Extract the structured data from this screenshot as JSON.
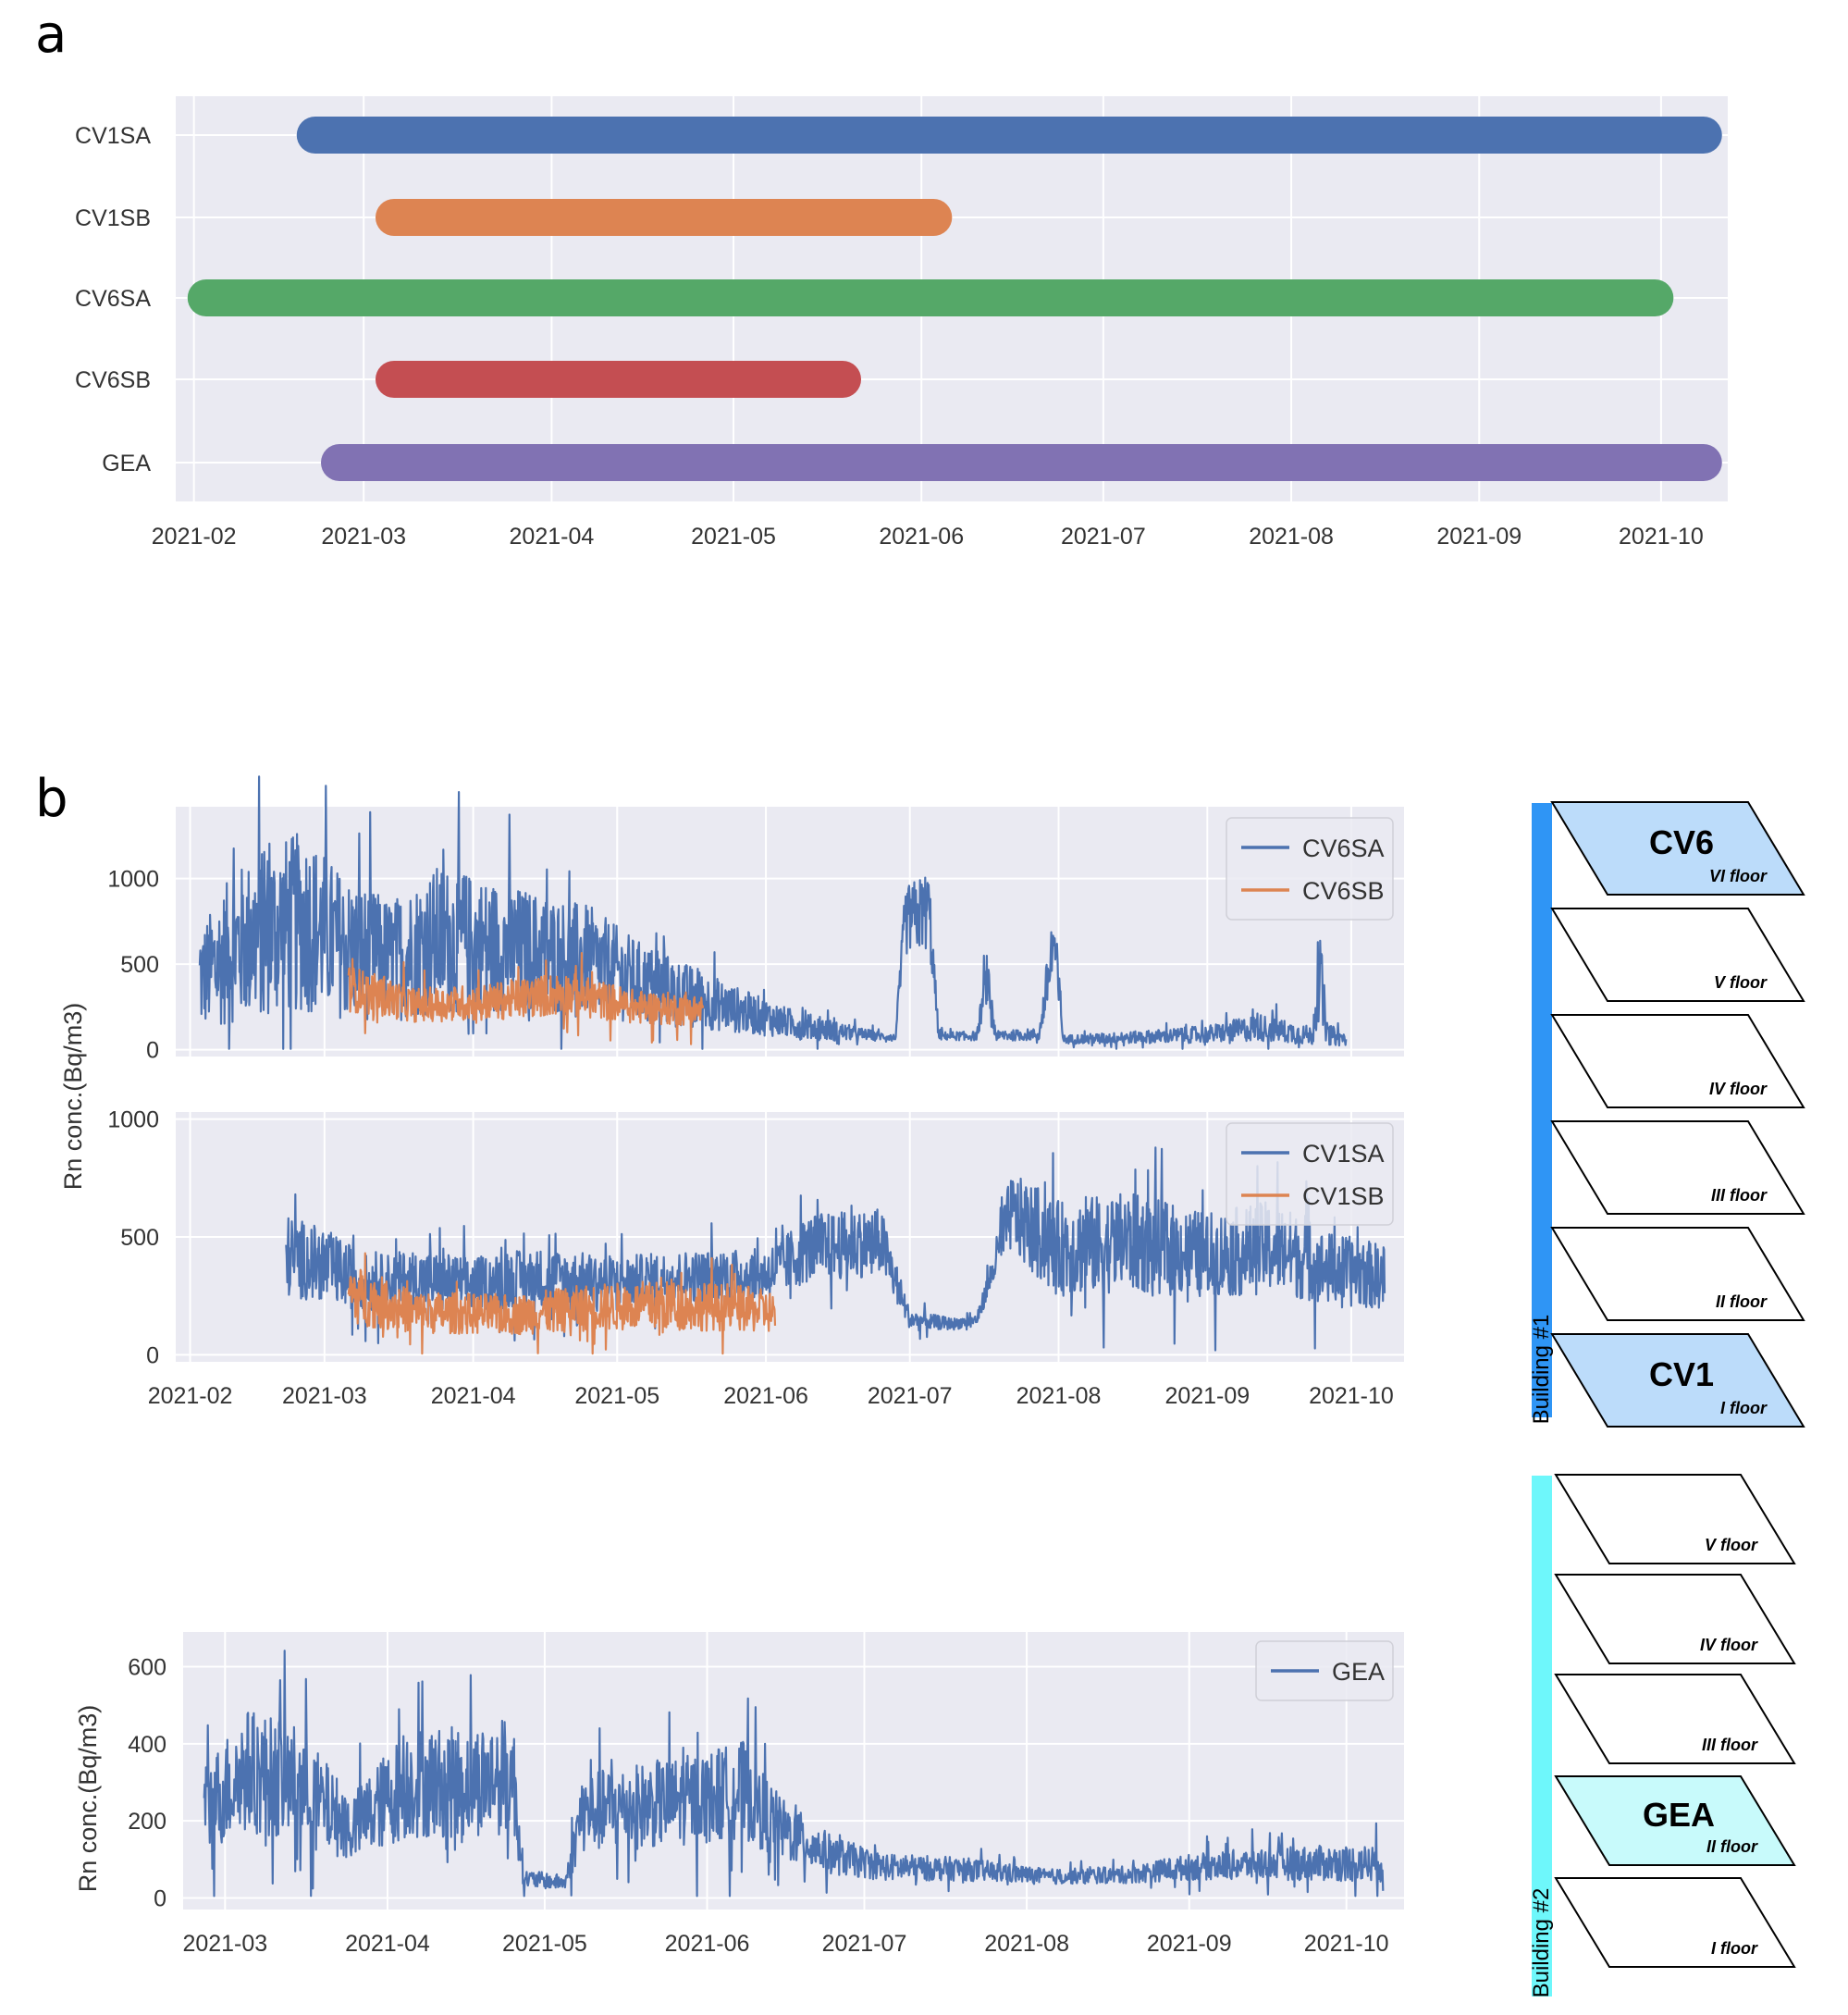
{
  "panels": {
    "a": "a",
    "b": "b"
  },
  "colors": {
    "blue": "#4c72b0",
    "orange": "#dd8452",
    "green": "#55a868",
    "red": "#c44e52",
    "purple": "#8172b3",
    "plot_bg": "#eaeaf2",
    "bldg1": "#2f95f5",
    "bldg2": "#6ef7fb",
    "floor_hl1": "#bcdcfa",
    "floor_hl2": "#c8fafb"
  },
  "chart_data": [
    {
      "id": "a",
      "type": "gantt",
      "title": "",
      "xlabel": "",
      "ylabel": "",
      "x_ticks": [
        "2021-02",
        "2021-03",
        "2021-04",
        "2021-05",
        "2021-06",
        "2021-07",
        "2021-08",
        "2021-09",
        "2021-10"
      ],
      "xlim": [
        "2021-01-29",
        "2021-10-12"
      ],
      "grid": true,
      "rows": [
        {
          "label": "CV1SA",
          "start": "2021-02-21",
          "end": "2021-10-08",
          "color": "#4c72b0"
        },
        {
          "label": "CV1SB",
          "start": "2021-03-06",
          "end": "2021-06-03",
          "color": "#dd8452"
        },
        {
          "label": "CV6SA",
          "start": "2021-02-03",
          "end": "2021-09-30",
          "color": "#55a868"
        },
        {
          "label": "CV6SB",
          "start": "2021-03-06",
          "end": "2021-05-19",
          "color": "#c44e52"
        },
        {
          "label": "GEA",
          "start": "2021-02-25",
          "end": "2021-10-08",
          "color": "#8172b3"
        }
      ]
    },
    {
      "id": "b1",
      "type": "line",
      "xlabel": "",
      "ylabel": "",
      "x_ticks": [],
      "y_ticks": [
        "0",
        "500",
        "1000"
      ],
      "xlim": [
        "2021-01-29",
        "2021-10-12"
      ],
      "ylim": [
        -40,
        1420
      ],
      "legend_position": "top-right",
      "series": [
        {
          "name": "CV6SA",
          "color": "#4c72b0",
          "start": "2021-02-03",
          "end": "2021-09-30",
          "keypoints": [
            [
              "2021-02-03",
              400
            ],
            [
              "2021-02-10",
              600
            ],
            [
              "2021-02-18",
              700
            ],
            [
              "2021-02-25",
              750
            ],
            [
              "2021-03-05",
              600
            ],
            [
              "2021-03-15",
              520
            ],
            [
              "2021-03-25",
              650
            ],
            [
              "2021-04-05",
              600
            ],
            [
              "2021-04-15",
              560
            ],
            [
              "2021-04-25",
              520
            ],
            [
              "2021-05-05",
              400
            ],
            [
              "2021-05-15",
              320
            ],
            [
              "2021-05-25",
              240
            ],
            [
              "2021-06-05",
              160
            ],
            [
              "2021-06-15",
              110
            ],
            [
              "2021-06-28",
              70
            ],
            [
              "2021-06-30",
              750
            ],
            [
              "2021-07-05",
              820
            ],
            [
              "2021-07-07",
              80
            ],
            [
              "2021-07-15",
              80
            ],
            [
              "2021-07-17",
              420
            ],
            [
              "2021-07-19",
              80
            ],
            [
              "2021-07-28",
              90
            ],
            [
              "2021-07-31",
              640
            ],
            [
              "2021-08-02",
              60
            ],
            [
              "2021-08-15",
              70
            ],
            [
              "2021-09-01",
              90
            ],
            [
              "2021-09-12",
              130
            ],
            [
              "2021-09-23",
              80
            ],
            [
              "2021-09-24",
              520
            ],
            [
              "2021-09-26",
              90
            ],
            [
              "2021-09-30",
              60
            ]
          ],
          "amplitude": [
            [
              0,
              0.75
            ],
            [
              0.55,
              0.55
            ],
            [
              0.6,
              0.25
            ],
            [
              1,
              0.7
            ]
          ]
        },
        {
          "name": "CV6SB",
          "color": "#dd8452",
          "start": "2021-03-06",
          "end": "2021-05-19",
          "keypoints": [
            [
              "2021-03-06",
              360
            ],
            [
              "2021-03-20",
              260
            ],
            [
              "2021-04-05",
              280
            ],
            [
              "2021-04-20",
              330
            ],
            [
              "2021-05-05",
              250
            ],
            [
              "2021-05-19",
              230
            ]
          ],
          "amplitude": [
            [
              0,
              0.38
            ],
            [
              1,
              0.4
            ]
          ]
        }
      ]
    },
    {
      "id": "b2",
      "type": "line",
      "xlabel": "",
      "ylabel": "Rn conc.(Bq/m3)",
      "x_ticks": [
        "2021-02",
        "2021-03",
        "2021-04",
        "2021-05",
        "2021-06",
        "2021-07",
        "2021-08",
        "2021-09",
        "2021-10"
      ],
      "y_ticks": [
        "0",
        "500",
        "1000"
      ],
      "xlim": [
        "2021-01-29",
        "2021-10-12"
      ],
      "ylim": [
        -30,
        1030
      ],
      "legend_position": "top-right",
      "series": [
        {
          "name": "CV1SA",
          "color": "#4c72b0",
          "start": "2021-02-21",
          "end": "2021-10-08",
          "keypoints": [
            [
              "2021-02-21",
              420
            ],
            [
              "2021-03-01",
              380
            ],
            [
              "2021-03-10",
              300
            ],
            [
              "2021-03-20",
              320
            ],
            [
              "2021-04-01",
              300
            ],
            [
              "2021-04-15",
              330
            ],
            [
              "2021-05-01",
              310
            ],
            [
              "2021-05-15",
              330
            ],
            [
              "2021-06-01",
              340
            ],
            [
              "2021-06-10",
              450
            ],
            [
              "2021-06-25",
              480
            ],
            [
              "2021-07-01",
              150
            ],
            [
              "2021-07-10",
              130
            ],
            [
              "2021-07-15",
              150
            ],
            [
              "2021-07-22",
              600
            ],
            [
              "2021-08-01",
              450
            ],
            [
              "2021-08-15",
              480
            ],
            [
              "2021-09-01",
              420
            ],
            [
              "2021-09-15",
              460
            ],
            [
              "2021-09-25",
              370
            ],
            [
              "2021-10-08",
              330
            ]
          ],
          "amplitude": [
            [
              0,
              0.42
            ],
            [
              0.55,
              0.3
            ],
            [
              0.63,
              0.15
            ],
            [
              0.7,
              0.45
            ],
            [
              1,
              0.42
            ]
          ]
        },
        {
          "name": "CV1SB",
          "color": "#dd8452",
          "start": "2021-03-06",
          "end": "2021-06-03",
          "keypoints": [
            [
              "2021-03-06",
              260
            ],
            [
              "2021-03-20",
              180
            ],
            [
              "2021-04-10",
              170
            ],
            [
              "2021-04-25",
              200
            ],
            [
              "2021-05-10",
              210
            ],
            [
              "2021-05-25",
              200
            ],
            [
              "2021-06-03",
              180
            ]
          ],
          "amplitude": [
            [
              0,
              0.5
            ],
            [
              1,
              0.5
            ]
          ]
        }
      ]
    },
    {
      "id": "b3",
      "type": "line",
      "xlabel": "",
      "ylabel": "Rn conc.(Bq/m3)",
      "x_ticks": [
        "2021-03",
        "2021-04",
        "2021-05",
        "2021-06",
        "2021-07",
        "2021-08",
        "2021-09",
        "2021-10"
      ],
      "y_ticks": [
        "0",
        "200",
        "400",
        "600"
      ],
      "xlim": [
        "2021-02-21",
        "2021-10-12"
      ],
      "ylim": [
        -30,
        690
      ],
      "legend_position": "top-right",
      "series": [
        {
          "name": "GEA",
          "color": "#4c72b0",
          "start": "2021-02-25",
          "end": "2021-10-08",
          "keypoints": [
            [
              "2021-02-25",
              230
            ],
            [
              "2021-03-05",
              330
            ],
            [
              "2021-03-15",
              300
            ],
            [
              "2021-03-25",
              180
            ],
            [
              "2021-04-05",
              300
            ],
            [
              "2021-04-15",
              300
            ],
            [
              "2021-04-25",
              320
            ],
            [
              "2021-04-27",
              50
            ],
            [
              "2021-05-05",
              40
            ],
            [
              "2021-05-08",
              220
            ],
            [
              "2021-05-20",
              240
            ],
            [
              "2021-06-01",
              260
            ],
            [
              "2021-06-08",
              280
            ],
            [
              "2021-06-15",
              180
            ],
            [
              "2021-06-25",
              110
            ],
            [
              "2021-07-05",
              80
            ],
            [
              "2021-07-20",
              75
            ],
            [
              "2021-08-05",
              55
            ],
            [
              "2021-08-20",
              60
            ],
            [
              "2021-09-01",
              80
            ],
            [
              "2021-09-15",
              90
            ],
            [
              "2021-10-08",
              90
            ]
          ],
          "amplitude": [
            [
              0,
              0.5
            ],
            [
              0.55,
              0.45
            ],
            [
              0.75,
              0.35
            ],
            [
              1,
              0.55
            ]
          ]
        }
      ]
    }
  ],
  "buildings": [
    {
      "name": "Building #1",
      "floors": [
        {
          "label": "VI floor",
          "sensor": "CV6",
          "highlight": true
        },
        {
          "label": "V floor",
          "sensor": "",
          "highlight": false
        },
        {
          "label": "IV floor",
          "sensor": "",
          "highlight": false
        },
        {
          "label": "III floor",
          "sensor": "",
          "highlight": false
        },
        {
          "label": "II floor",
          "sensor": "",
          "highlight": false
        },
        {
          "label": "I floor",
          "sensor": "CV1",
          "highlight": true
        }
      ]
    },
    {
      "name": "Building #2",
      "floors": [
        {
          "label": "V floor",
          "sensor": "",
          "highlight": false
        },
        {
          "label": "IV floor",
          "sensor": "",
          "highlight": false
        },
        {
          "label": "III floor",
          "sensor": "",
          "highlight": false
        },
        {
          "label": "II floor",
          "sensor": "GEA",
          "highlight": true
        },
        {
          "label": "I floor",
          "sensor": "",
          "highlight": false
        }
      ]
    }
  ]
}
